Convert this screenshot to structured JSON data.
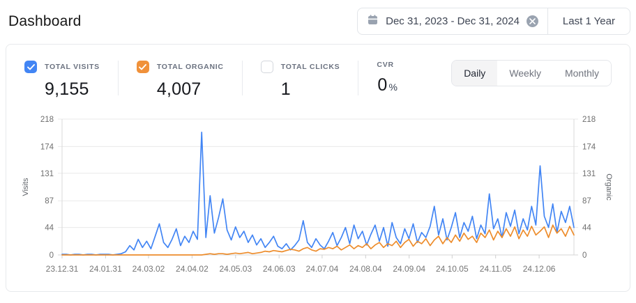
{
  "page": {
    "title": "Dashboard"
  },
  "date_control": {
    "range_label": "Dec 31, 2023 - Dec 31, 2024",
    "preset_label": "Last 1 Year",
    "calendar_icon": "calendar-icon",
    "clear_icon": "x",
    "icon_color": "#9aa3b0"
  },
  "metrics": [
    {
      "label": "TOTAL VISITS",
      "value": "9,155",
      "checked": true,
      "checkbox_color": "#4285F4"
    },
    {
      "label": "TOTAL ORGANIC",
      "value": "4,007",
      "checked": true,
      "checkbox_color": "#F0913A"
    },
    {
      "label": "TOTAL CLICKS",
      "value": "1",
      "checked": false,
      "checkbox_color": "#ffffff"
    },
    {
      "label": "CVR",
      "value": "0",
      "suffix": "%"
    }
  ],
  "granularity_tabs": [
    {
      "label": "Daily",
      "active": true
    },
    {
      "label": "Weekly",
      "active": false
    },
    {
      "label": "Monthly",
      "active": false
    }
  ],
  "chart_data": {
    "type": "line",
    "title": "",
    "ylabel_left": "Visits",
    "ylabel_right": "Organic",
    "y_ticks": [
      0,
      44,
      87,
      131,
      174,
      218
    ],
    "y_max": 218,
    "grid": "horizontal",
    "legend": "none",
    "x_tick_labels": [
      "23.12.31",
      "24.01.31",
      "24.03.02",
      "24.04.02",
      "24.05.03",
      "24.06.03",
      "24.07.04",
      "24.08.04",
      "24.09.04",
      "24.10.05",
      "24.11.05",
      "24.12.06"
    ],
    "x_tick_pos": [
      0,
      0.085,
      0.169,
      0.254,
      0.339,
      0.424,
      0.508,
      0.593,
      0.678,
      0.762,
      0.847,
      0.932
    ],
    "series": [
      {
        "name": "Visits",
        "color": "#4285F4",
        "values": [
          1,
          1,
          0,
          1,
          1,
          0,
          1,
          1,
          0,
          1,
          1,
          1,
          0,
          1,
          2,
          5,
          15,
          8,
          25,
          12,
          22,
          10,
          30,
          50,
          20,
          12,
          25,
          42,
          15,
          30,
          20,
          38,
          25,
          197,
          28,
          95,
          35,
          60,
          90,
          40,
          24,
          45,
          28,
          38,
          20,
          32,
          16,
          26,
          12,
          20,
          30,
          14,
          10,
          18,
          8,
          15,
          24,
          55,
          20,
          12,
          26,
          16,
          10,
          22,
          36,
          15,
          28,
          44,
          18,
          48,
          26,
          38,
          16,
          33,
          48,
          22,
          44,
          14,
          52,
          28,
          18,
          42,
          26,
          50,
          20,
          36,
          28,
          46,
          78,
          32,
          58,
          24,
          44,
          68,
          28,
          52,
          38,
          62,
          26,
          48,
          34,
          98,
          42,
          58,
          28,
          68,
          46,
          72,
          34,
          58,
          40,
          78,
          48,
          143,
          62,
          44,
          82,
          36,
          70,
          52,
          78,
          44
        ]
      },
      {
        "name": "Organic",
        "color": "#ED8C2B",
        "values": [
          0,
          0,
          0,
          0,
          0,
          0,
          0,
          0,
          0,
          0,
          0,
          0,
          0,
          0,
          0,
          0,
          0,
          0,
          0,
          0,
          0,
          0,
          0,
          0,
          0,
          0,
          0,
          0,
          0,
          0,
          0,
          0,
          0,
          0,
          1,
          2,
          1,
          2,
          2,
          1,
          2,
          3,
          2,
          3,
          4,
          2,
          3,
          4,
          6,
          5,
          7,
          6,
          5,
          7,
          9,
          8,
          6,
          10,
          12,
          8,
          6,
          10,
          9,
          12,
          10,
          14,
          8,
          12,
          16,
          10,
          15,
          12,
          18,
          10,
          16,
          20,
          12,
          18,
          15,
          22,
          12,
          20,
          25,
          14,
          22,
          18,
          26,
          15,
          24,
          30,
          18,
          28,
          20,
          32,
          22,
          35,
          25,
          30,
          20,
          35,
          28,
          40,
          24,
          38,
          28,
          42,
          30,
          45,
          26,
          40,
          30,
          46,
          32,
          38,
          45,
          28,
          48,
          35,
          42,
          30,
          46,
          32
        ]
      }
    ]
  }
}
